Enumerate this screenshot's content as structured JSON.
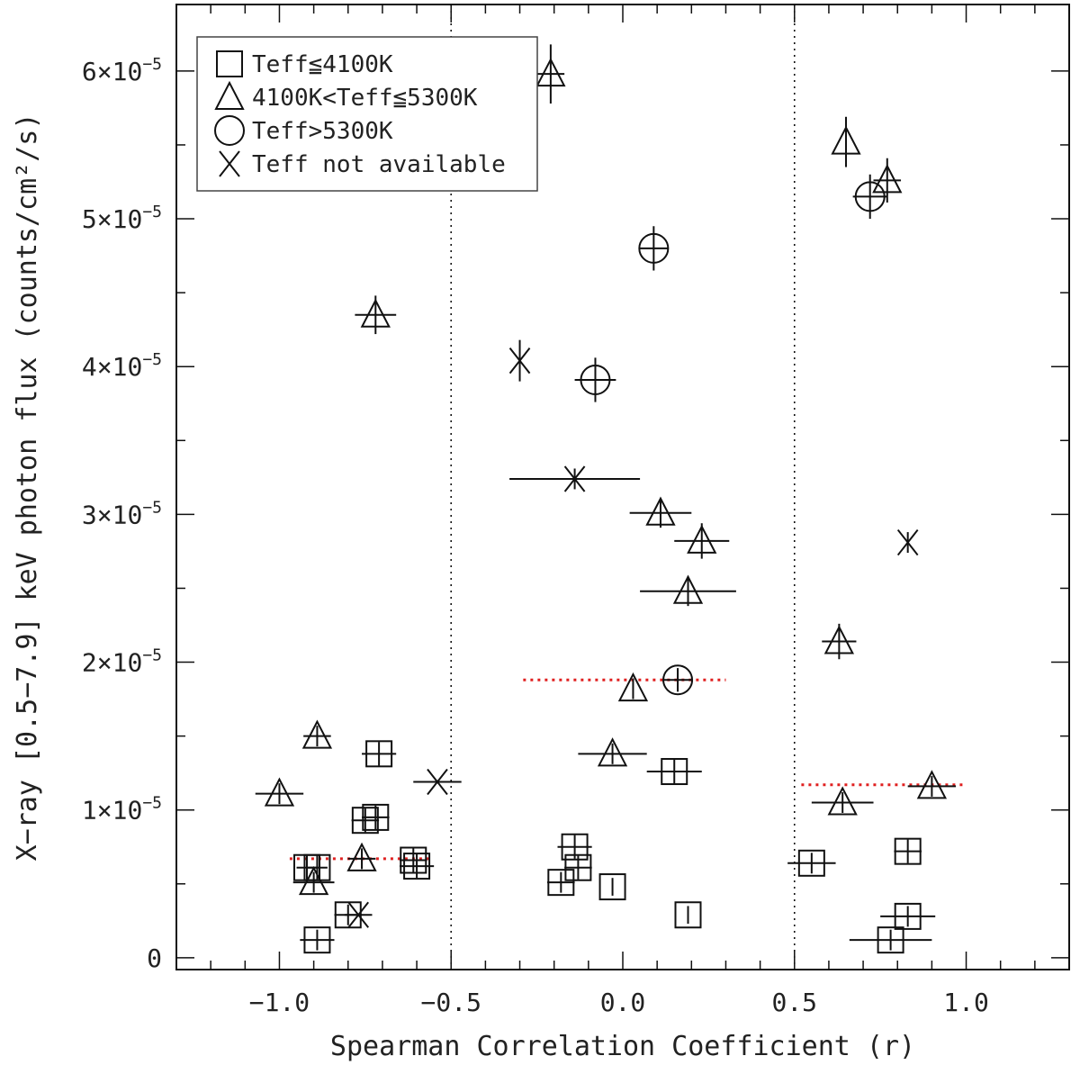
{
  "chart_data": {
    "type": "scatter",
    "xlabel": "Spearman Correlation Coefficient (r)",
    "ylabel": "X−ray [0.5−7.9] keV photon flux (counts/cm²/s)",
    "xlim": [
      -1.3,
      1.3
    ],
    "ylim": [
      -0.08,
      6.45
    ],
    "y_unit_multiplier": "×10⁻⁵",
    "x_ticks": [
      -1.0,
      -0.5,
      0.0,
      0.5,
      1.0
    ],
    "x_tick_labels": [
      "−1.0",
      "−0.5",
      "0.0",
      "0.5",
      "1.0"
    ],
    "y_ticks": [
      0,
      1,
      2,
      3,
      4,
      5,
      6
    ],
    "y_tick_labels": [
      "0",
      "1×10",
      "2×10",
      "3×10",
      "4×10",
      "5×10",
      "6×10"
    ],
    "y_tick_exponent": "−5",
    "vertical_reference_lines": [
      -0.5,
      0.5
    ],
    "grid": false,
    "legend_position": "top-left",
    "legend": [
      {
        "marker": "square",
        "label": "Teff≦4100K"
      },
      {
        "marker": "triangle",
        "label": "4100K<Teff≦5300K"
      },
      {
        "marker": "circle",
        "label": "Teff>5300K"
      },
      {
        "marker": "cross",
        "label": "Teff not available"
      }
    ],
    "series": [
      {
        "marker": "square",
        "points": [
          {
            "x": -0.71,
            "y": 1.38,
            "xerr": 0.05,
            "yerr": 0.08
          },
          {
            "x": -0.75,
            "y": 0.93,
            "xerr": 0.04,
            "yerr": 0.08
          },
          {
            "x": -0.72,
            "y": 0.95,
            "xerr": 0.04,
            "yerr": 0.08
          },
          {
            "x": -0.92,
            "y": 0.61,
            "xerr": 0.03,
            "yerr": 0.08
          },
          {
            "x": -0.89,
            "y": 0.61,
            "xerr": 0.03,
            "yerr": 0.08
          },
          {
            "x": -0.61,
            "y": 0.66,
            "xerr": 0.04,
            "yerr": 0.08
          },
          {
            "x": -0.6,
            "y": 0.62,
            "xerr": 0.05,
            "yerr": 0.08
          },
          {
            "x": -0.8,
            "y": 0.29,
            "xerr": 0.04,
            "yerr": 0.07
          },
          {
            "x": -0.89,
            "y": 0.12,
            "xerr": 0.05,
            "yerr": 0.07
          },
          {
            "x": -0.14,
            "y": 0.75,
            "xerr": 0.05,
            "yerr": 0.08
          },
          {
            "x": -0.13,
            "y": 0.61,
            "xerr": 0.04,
            "yerr": 0.08
          },
          {
            "x": -0.18,
            "y": 0.51,
            "xerr": 0.04,
            "yerr": 0.07
          },
          {
            "x": -0.03,
            "y": 0.48,
            "xerr": 0.0,
            "yerr": 0.06
          },
          {
            "x": 0.15,
            "y": 1.26,
            "xerr": 0.08,
            "yerr": 0.08
          },
          {
            "x": 0.19,
            "y": 0.29,
            "xerr": 0.0,
            "yerr": 0.06
          },
          {
            "x": 0.55,
            "y": 0.64,
            "xerr": 0.07,
            "yerr": 0.07
          },
          {
            "x": 0.83,
            "y": 0.72,
            "xerr": 0.04,
            "yerr": 0.08
          },
          {
            "x": 0.83,
            "y": 0.28,
            "xerr": 0.08,
            "yerr": 0.07
          },
          {
            "x": 0.78,
            "y": 0.12,
            "xerr": 0.12,
            "yerr": 0.07
          }
        ]
      },
      {
        "marker": "triangle",
        "points": [
          {
            "x": -0.21,
            "y": 5.98,
            "xerr": 0.04,
            "yerr": 0.2
          },
          {
            "x": -0.72,
            "y": 4.35,
            "xerr": 0.06,
            "yerr": 0.13
          },
          {
            "x": 0.65,
            "y": 5.52,
            "xerr": 0.0,
            "yerr": 0.17
          },
          {
            "x": 0.77,
            "y": 5.26,
            "xerr": 0.04,
            "yerr": 0.15
          },
          {
            "x": 0.11,
            "y": 3.01,
            "xerr": 0.09,
            "yerr": 0.1
          },
          {
            "x": 0.23,
            "y": 2.82,
            "xerr": 0.08,
            "yerr": 0.12
          },
          {
            "x": 0.19,
            "y": 2.48,
            "xerr": 0.14,
            "yerr": 0.1
          },
          {
            "x": 0.63,
            "y": 2.14,
            "xerr": 0.05,
            "yerr": 0.12
          },
          {
            "x": 0.03,
            "y": 1.82,
            "xerr": 0.0,
            "yerr": 0.07
          },
          {
            "x": -0.03,
            "y": 1.38,
            "xerr": 0.1,
            "yerr": 0.07
          },
          {
            "x": -0.89,
            "y": 1.5,
            "xerr": 0.04,
            "yerr": 0.07
          },
          {
            "x": -1.0,
            "y": 1.11,
            "xerr": 0.07,
            "yerr": 0.07
          },
          {
            "x": 0.64,
            "y": 1.05,
            "xerr": 0.09,
            "yerr": 0.07
          },
          {
            "x": 0.9,
            "y": 1.16,
            "xerr": 0.07,
            "yerr": 0.07
          },
          {
            "x": -0.76,
            "y": 0.67,
            "xerr": 0.04,
            "yerr": 0.07
          },
          {
            "x": -0.9,
            "y": 0.51,
            "xerr": 0.06,
            "yerr": 0.07
          }
        ]
      },
      {
        "marker": "circle",
        "points": [
          {
            "x": 0.09,
            "y": 4.8,
            "xerr": 0.04,
            "yerr": 0.15
          },
          {
            "x": -0.08,
            "y": 3.91,
            "xerr": 0.06,
            "yerr": 0.15
          },
          {
            "x": 0.72,
            "y": 5.15,
            "xerr": 0.05,
            "yerr": 0.15
          },
          {
            "x": 0.16,
            "y": 1.88,
            "xerr": 0.04,
            "yerr": 0.08
          }
        ]
      },
      {
        "marker": "cross",
        "points": [
          {
            "x": -0.3,
            "y": 4.04,
            "xerr": 0.0,
            "yerr": 0.14
          },
          {
            "x": -0.14,
            "y": 3.24,
            "xerr": 0.19,
            "yerr": 0.07
          },
          {
            "x": 0.83,
            "y": 2.81,
            "xerr": 0.0,
            "yerr": 0.07
          },
          {
            "x": -0.54,
            "y": 1.19,
            "xerr": 0.07,
            "yerr": 0.0
          },
          {
            "x": -0.77,
            "y": 0.29,
            "xerr": 0.04,
            "yerr": 0.0
          }
        ]
      }
    ],
    "dotted_red_segments": [
      {
        "x1": -0.97,
        "x2": -0.56,
        "y": 0.67
      },
      {
        "x1": -0.29,
        "x2": 0.3,
        "y": 1.88
      },
      {
        "x1": 0.52,
        "x2": 1.0,
        "y": 1.17
      }
    ]
  }
}
